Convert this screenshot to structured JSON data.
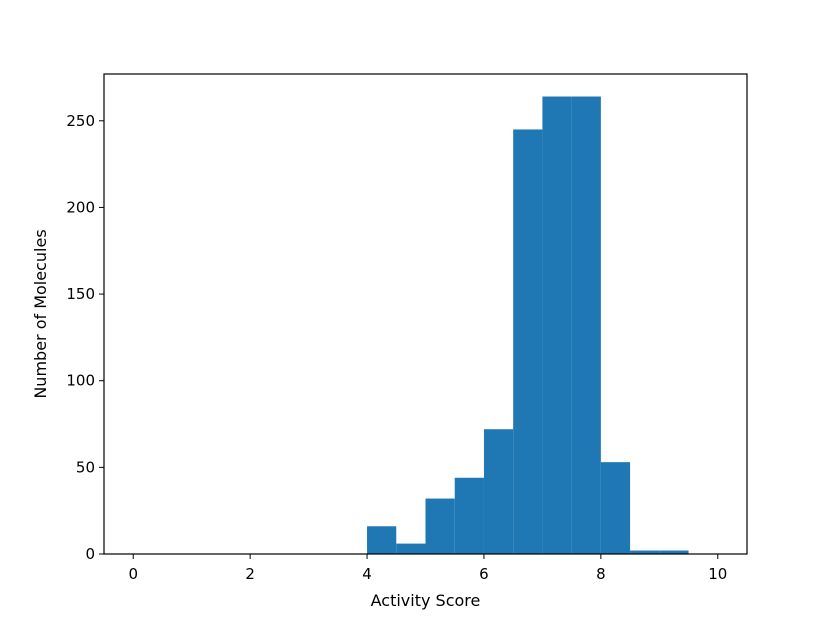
{
  "chart_data": {
    "type": "bar",
    "subtype": "histogram",
    "title": "",
    "xlabel": "Activity Score",
    "ylabel": "Number of Molecules",
    "xlim": [
      -0.5,
      10.5
    ],
    "ylim": [
      0,
      277
    ],
    "xticks": [
      0,
      2,
      4,
      6,
      8,
      10
    ],
    "yticks": [
      0,
      50,
      100,
      150,
      200,
      250
    ],
    "grid": false,
    "legend": "none",
    "bar_color": "#1f77b4",
    "bins": [
      {
        "x0": 0.0,
        "x1": 0.5,
        "count": 0
      },
      {
        "x0": 0.5,
        "x1": 1.0,
        "count": 0
      },
      {
        "x0": 1.0,
        "x1": 1.5,
        "count": 0
      },
      {
        "x0": 1.5,
        "x1": 2.0,
        "count": 0
      },
      {
        "x0": 2.0,
        "x1": 2.5,
        "count": 0
      },
      {
        "x0": 2.5,
        "x1": 3.0,
        "count": 0
      },
      {
        "x0": 3.0,
        "x1": 3.5,
        "count": 0
      },
      {
        "x0": 3.5,
        "x1": 4.0,
        "count": 0
      },
      {
        "x0": 4.0,
        "x1": 4.5,
        "count": 16
      },
      {
        "x0": 4.5,
        "x1": 5.0,
        "count": 6
      },
      {
        "x0": 5.0,
        "x1": 5.5,
        "count": 32
      },
      {
        "x0": 5.5,
        "x1": 6.0,
        "count": 44
      },
      {
        "x0": 6.0,
        "x1": 6.5,
        "count": 72
      },
      {
        "x0": 6.5,
        "x1": 7.0,
        "count": 245
      },
      {
        "x0": 7.0,
        "x1": 7.5,
        "count": 264
      },
      {
        "x0": 7.5,
        "x1": 8.0,
        "count": 264
      },
      {
        "x0": 8.0,
        "x1": 8.5,
        "count": 53
      },
      {
        "x0": 8.5,
        "x1": 9.0,
        "count": 2
      },
      {
        "x0": 9.0,
        "x1": 9.5,
        "count": 2
      },
      {
        "x0": 9.5,
        "x1": 10.0,
        "count": 0
      }
    ]
  }
}
